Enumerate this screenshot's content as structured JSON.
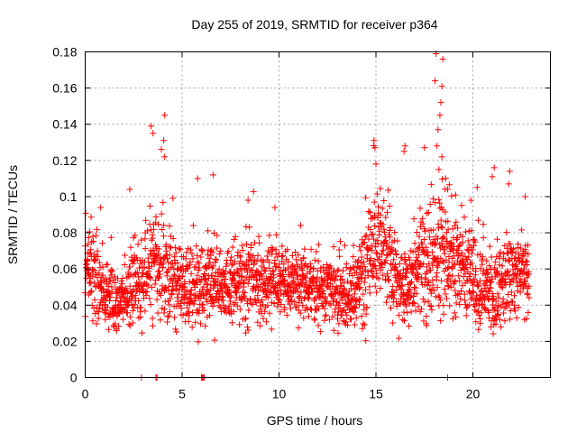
{
  "chart_data": {
    "type": "scatter",
    "title": "Day 255 of 2019, SRMTID for receiver p364",
    "xlabel": "GPS time / hours",
    "ylabel": "SRMTID / TECUs",
    "xlim": [
      0,
      24
    ],
    "ylim": [
      0,
      0.18
    ],
    "xticks": [
      0,
      5,
      10,
      15,
      20
    ],
    "xtick_labels": [
      "0",
      "5",
      "10",
      "15",
      "20"
    ],
    "yticks": [
      0,
      0.02,
      0.04,
      0.06,
      0.08,
      0.1,
      0.12,
      0.14,
      0.16,
      0.18
    ],
    "ytick_labels": [
      "0",
      "0.02",
      "0.04",
      "0.06",
      "0.08",
      "0.1",
      "0.12",
      "0.14",
      "0.16",
      "0.18"
    ],
    "grid": true,
    "marker": "+",
    "color": "#ff0000",
    "series": [
      {
        "name": "SRMTID",
        "x_range": [
          0,
          22.9
        ],
        "sample_step": 0.02,
        "envelope": {
          "x": [
            0,
            0.5,
            1,
            1.5,
            2,
            2.5,
            3,
            3.5,
            4,
            4.5,
            5,
            5.5,
            6,
            6.5,
            7,
            7.5,
            8,
            8.5,
            9,
            9.5,
            10,
            10.5,
            11,
            11.5,
            12,
            12.5,
            13,
            13.5,
            14,
            14.5,
            15,
            15.5,
            16,
            16.5,
            17,
            17.5,
            18,
            18.5,
            19,
            19.5,
            20,
            20.5,
            21,
            21.5,
            22,
            22.5,
            22.9
          ],
          "median": [
            0.06,
            0.055,
            0.045,
            0.04,
            0.045,
            0.05,
            0.055,
            0.06,
            0.06,
            0.055,
            0.05,
            0.05,
            0.05,
            0.055,
            0.05,
            0.05,
            0.055,
            0.055,
            0.055,
            0.055,
            0.055,
            0.05,
            0.05,
            0.05,
            0.05,
            0.05,
            0.045,
            0.045,
            0.05,
            0.06,
            0.07,
            0.07,
            0.055,
            0.05,
            0.055,
            0.06,
            0.065,
            0.07,
            0.06,
            0.06,
            0.055,
            0.05,
            0.045,
            0.05,
            0.055,
            0.06,
            0.055
          ],
          "spread": [
            0.015,
            0.018,
            0.012,
            0.012,
            0.012,
            0.015,
            0.018,
            0.02,
            0.02,
            0.018,
            0.015,
            0.015,
            0.018,
            0.018,
            0.015,
            0.015,
            0.018,
            0.018,
            0.015,
            0.015,
            0.012,
            0.012,
            0.012,
            0.012,
            0.012,
            0.012,
            0.012,
            0.014,
            0.016,
            0.02,
            0.02,
            0.02,
            0.018,
            0.018,
            0.018,
            0.02,
            0.025,
            0.025,
            0.02,
            0.016,
            0.016,
            0.016,
            0.016,
            0.016,
            0.016,
            0.016,
            0.016
          ]
        },
        "peaks": [
          {
            "x": 3.4,
            "y": 0.139
          },
          {
            "x": 3.5,
            "y": 0.135
          },
          {
            "x": 4.1,
            "y": 0.145
          },
          {
            "x": 4.05,
            "y": 0.131
          },
          {
            "x": 4.1,
            "y": 0.122
          },
          {
            "x": 5.8,
            "y": 0.11
          },
          {
            "x": 6.6,
            "y": 0.112
          },
          {
            "x": 8.4,
            "y": 0.098
          },
          {
            "x": 2.3,
            "y": 0.104
          },
          {
            "x": 0.8,
            "y": 0.094
          },
          {
            "x": 14.9,
            "y": 0.131
          },
          {
            "x": 14.95,
            "y": 0.127
          },
          {
            "x": 15.0,
            "y": 0.118
          },
          {
            "x": 16.5,
            "y": 0.128
          },
          {
            "x": 16.45,
            "y": 0.125
          },
          {
            "x": 17.5,
            "y": 0.127
          },
          {
            "x": 18.1,
            "y": 0.179
          },
          {
            "x": 18.05,
            "y": 0.164
          },
          {
            "x": 18.45,
            "y": 0.176
          },
          {
            "x": 18.4,
            "y": 0.161
          },
          {
            "x": 18.35,
            "y": 0.152
          },
          {
            "x": 18.3,
            "y": 0.145
          },
          {
            "x": 18.2,
            "y": 0.137
          },
          {
            "x": 18.15,
            "y": 0.128
          },
          {
            "x": 18.4,
            "y": 0.122
          },
          {
            "x": 18.25,
            "y": 0.115
          },
          {
            "x": 18.6,
            "y": 0.11
          },
          {
            "x": 18.7,
            "y": 0.104
          },
          {
            "x": 21.1,
            "y": 0.116
          },
          {
            "x": 21.0,
            "y": 0.111
          },
          {
            "x": 21.9,
            "y": 0.114
          },
          {
            "x": 21.85,
            "y": 0.107
          },
          {
            "x": 19.9,
            "y": 0.098
          },
          {
            "x": 22.7,
            "y": 0.1
          }
        ],
        "zeros": [
          2.9,
          3.65,
          3.7,
          6.0,
          6.05,
          6.1,
          6.15,
          18.7
        ]
      }
    ]
  }
}
